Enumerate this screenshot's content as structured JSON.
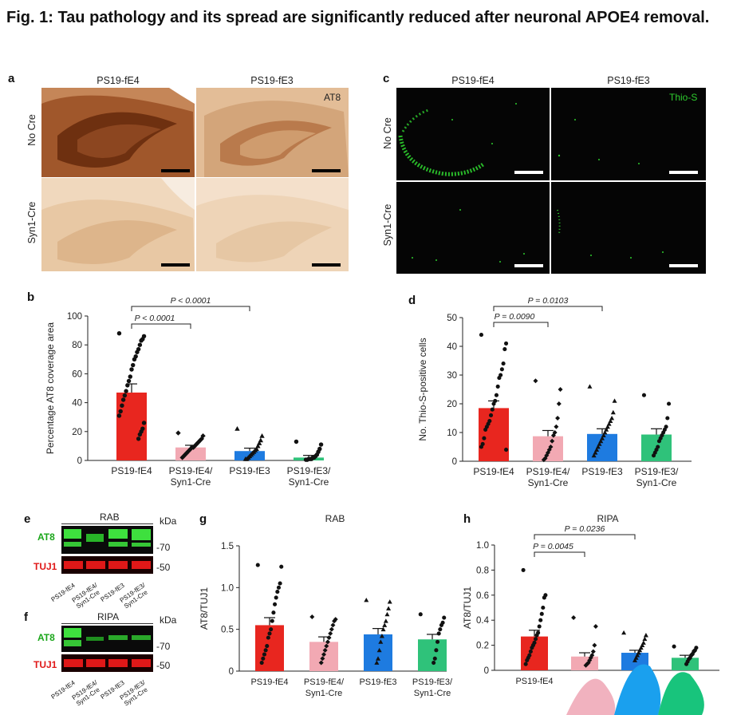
{
  "figure": {
    "title": "Fig. 1: Tau pathology and its spread are significantly reduced after neuronal APOE4 removal."
  },
  "panel_a": {
    "letter": "a",
    "cols": [
      "PS19-fE4",
      "PS19-fE3"
    ],
    "rows": [
      "No Cre",
      "Syn1-Cre"
    ],
    "stain": "AT8"
  },
  "panel_c": {
    "letter": "c",
    "cols": [
      "PS19-fE4",
      "PS19-fE3"
    ],
    "rows": [
      "No Cre",
      "Syn1-Cre"
    ],
    "stain": "Thio-S"
  },
  "panel_b": {
    "letter": "b"
  },
  "panel_d": {
    "letter": "d"
  },
  "panel_e": {
    "letter": "e",
    "header": "RAB",
    "kda": "kDa",
    "band1": "AT8",
    "band2": "TUJ1",
    "mw1": "70",
    "mw2": "50",
    "lanes": [
      "PS19-fE4",
      "PS19-fE4/ Syn1-Cre",
      "PS19-fE3",
      "PS19-fE3/ Syn1-Cre"
    ]
  },
  "panel_f": {
    "letter": "f",
    "header": "RIPA",
    "kda": "kDa",
    "band1": "AT8",
    "band2": "TUJ1",
    "mw1": "70",
    "mw2": "50",
    "lanes": [
      "PS19-fE4",
      "PS19-fE4/ Syn1-Cre",
      "PS19-fE3",
      "PS19-fE3/ Syn1-Cre"
    ]
  },
  "panel_g": {
    "letter": "g"
  },
  "panel_h": {
    "letter": "h"
  },
  "chart_data": [
    {
      "id": "b",
      "type": "bar",
      "title": "",
      "ylabel": "Percentage AT8 coverage area",
      "ylim": [
        0,
        100
      ],
      "yticks": [
        0,
        20,
        40,
        60,
        80,
        100
      ],
      "categories": [
        "PS19-fE4",
        "PS19-fE4/ Syn1-Cre",
        "PS19-fE3",
        "PS19-fE3/ Syn1-Cre"
      ],
      "values": [
        47,
        9,
        6.5,
        2
      ],
      "errors": [
        6,
        1.5,
        2,
        1.5
      ],
      "colors": [
        "#e8261f",
        "#f2a9b3",
        "#1e7be0",
        "#2fc27a"
      ],
      "markers": [
        "circle",
        "diamond",
        "triangle",
        "circle"
      ],
      "points": [
        [
          88,
          86,
          84,
          83,
          80,
          77,
          75,
          72,
          70,
          66,
          63,
          58,
          55,
          52,
          48,
          45,
          42,
          38,
          34,
          31,
          26,
          22,
          20,
          18,
          15
        ],
        [
          19,
          17,
          15,
          14,
          13,
          12,
          11,
          10,
          9,
          9,
          8,
          7,
          6,
          5,
          4,
          3,
          2
        ],
        [
          22,
          17,
          14,
          12,
          10,
          8,
          7,
          6,
          5,
          4,
          3,
          2,
          1,
          1
        ],
        [
          13,
          11,
          8,
          6,
          4,
          3,
          2,
          2,
          1,
          1,
          1,
          0.5,
          0.5
        ]
      ],
      "significance": [
        {
          "label": "P < 0.0001",
          "from": 0,
          "to": 2
        },
        {
          "label": "P < 0.0001",
          "from": 0,
          "to": 1
        }
      ]
    },
    {
      "id": "d",
      "type": "bar",
      "title": "",
      "ylabel": "No. Thio-S-positive cells",
      "ylim": [
        0,
        50
      ],
      "yticks": [
        0,
        10,
        20,
        30,
        40,
        50
      ],
      "categories": [
        "PS19-fE4",
        "PS19-fE4/ Syn1-Cre",
        "PS19-fE3",
        "PS19-fE3/ Syn1-Cre"
      ],
      "values": [
        18.5,
        8.7,
        9.5,
        9.3
      ],
      "errors": [
        2.5,
        2,
        1.8,
        2
      ],
      "colors": [
        "#e8261f",
        "#f2a9b3",
        "#1e7be0",
        "#2fc27a"
      ],
      "markers": [
        "circle",
        "diamond",
        "triangle",
        "circle"
      ],
      "points": [
        [
          44,
          41,
          39,
          34,
          32,
          30,
          29,
          26,
          23,
          21,
          20,
          18,
          16,
          14,
          13,
          12,
          11,
          8,
          6,
          5,
          4
        ],
        [
          28,
          25,
          20,
          15,
          12,
          10,
          9,
          7,
          5,
          4,
          3,
          2,
          1,
          0.5
        ],
        [
          26,
          21,
          17,
          15,
          14,
          13,
          12,
          11,
          10,
          9,
          8,
          7,
          6,
          5,
          4,
          3,
          2
        ],
        [
          23,
          20,
          15,
          12,
          11,
          10,
          9,
          8,
          7,
          5,
          4,
          3,
          2
        ]
      ],
      "significance": [
        {
          "label": "P = 0.0103",
          "from": 0,
          "to": 2
        },
        {
          "label": "P = 0.0090",
          "from": 0,
          "to": 1
        }
      ]
    },
    {
      "id": "g",
      "type": "bar",
      "title": "RAB",
      "ylabel": "AT8/TUJ1",
      "ylim": [
        0,
        1.5
      ],
      "yticks": [
        0,
        0.5,
        1.0,
        1.5
      ],
      "ytick_labels": [
        "0",
        "0.5",
        "1.0",
        "1.5"
      ],
      "categories": [
        "PS19-fE4",
        "PS19-fE4/ Syn1-Cre",
        "PS19-fE3",
        "PS19-fE3/ Syn1-Cre"
      ],
      "values": [
        0.55,
        0.35,
        0.44,
        0.38
      ],
      "errors": [
        0.09,
        0.06,
        0.07,
        0.06
      ],
      "colors": [
        "#e8261f",
        "#f2a9b3",
        "#1e7be0",
        "#2fc27a"
      ],
      "markers": [
        "circle",
        "diamond",
        "triangle",
        "circle"
      ],
      "points": [
        [
          1.27,
          1.25,
          1.05,
          1.0,
          0.95,
          0.88,
          0.8,
          0.7,
          0.6,
          0.5,
          0.45,
          0.4,
          0.3,
          0.25,
          0.2,
          0.15,
          0.1
        ],
        [
          0.65,
          0.62,
          0.6,
          0.55,
          0.5,
          0.45,
          0.4,
          0.35,
          0.3,
          0.25,
          0.2,
          0.15,
          0.1
        ],
        [
          0.85,
          0.83,
          0.75,
          0.68,
          0.6,
          0.55,
          0.5,
          0.42,
          0.35,
          0.25,
          0.15,
          0.1
        ],
        [
          0.68,
          0.64,
          0.58,
          0.55,
          0.5,
          0.45,
          0.35,
          0.25,
          0.15,
          0.1
        ]
      ],
      "significance": []
    },
    {
      "id": "h",
      "type": "bar",
      "title": "RIPA",
      "ylabel": "AT8/TUJ1",
      "ylim": [
        0,
        1.0
      ],
      "yticks": [
        0,
        0.2,
        0.4,
        0.6,
        0.8,
        1.0
      ],
      "ytick_labels": [
        "0",
        "0.2",
        "0.4",
        "0.6",
        "0.8",
        "1.0"
      ],
      "categories": [
        "PS19-fE4",
        "",
        "",
        ""
      ],
      "values": [
        0.27,
        0.11,
        0.14,
        0.1
      ],
      "errors": [
        0.05,
        0.03,
        0.02,
        0.02
      ],
      "colors": [
        "#e8261f",
        "#f2a9b3",
        "#1e7be0",
        "#2fc27a"
      ],
      "markers": [
        "circle",
        "diamond",
        "triangle",
        "circle"
      ],
      "points": [
        [
          0.8,
          0.6,
          0.58,
          0.5,
          0.45,
          0.4,
          0.35,
          0.3,
          0.28,
          0.25,
          0.22,
          0.2,
          0.18,
          0.15,
          0.12,
          0.1,
          0.08,
          0.05
        ],
        [
          0.42,
          0.35,
          0.2,
          0.15,
          0.12,
          0.1,
          0.08,
          0.06,
          0.05,
          0.04
        ],
        [
          0.3,
          0.28,
          0.25,
          0.22,
          0.2,
          0.18,
          0.16,
          0.14,
          0.12,
          0.1,
          0.08
        ],
        [
          0.19,
          0.18,
          0.16,
          0.15,
          0.13,
          0.12,
          0.1,
          0.09,
          0.07,
          0.05
        ]
      ],
      "significance": [
        {
          "label": "P = 0.0236",
          "from": 0,
          "to": 2
        },
        {
          "label": "P = 0.0045",
          "from": 0,
          "to": 1
        }
      ]
    }
  ]
}
